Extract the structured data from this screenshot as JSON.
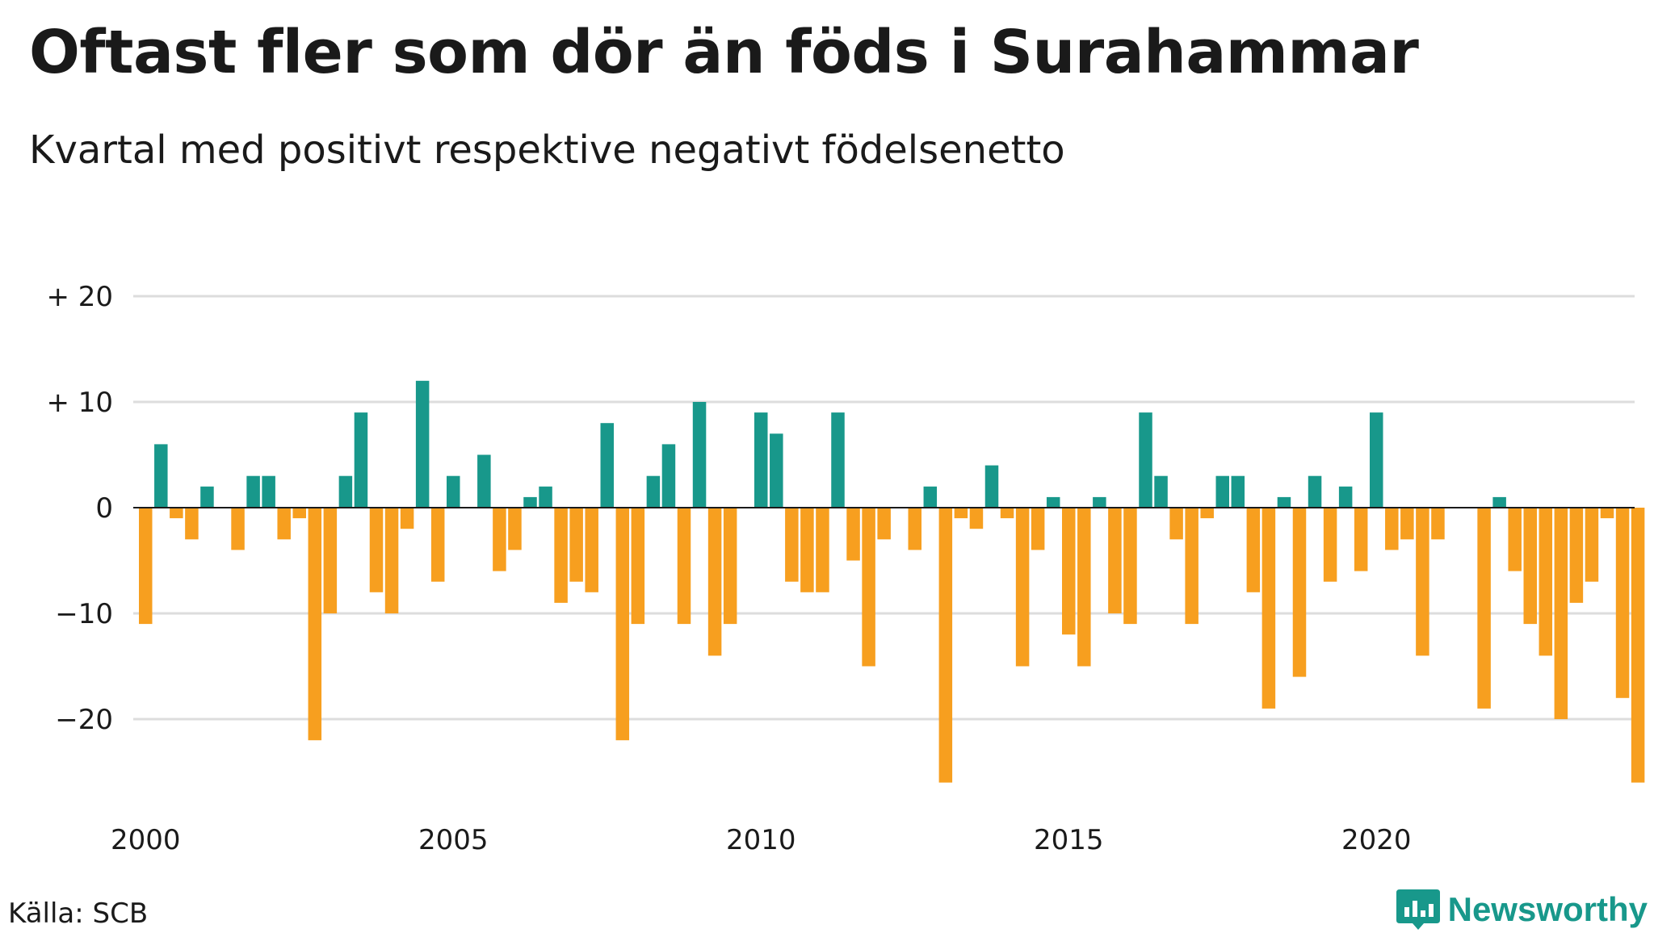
{
  "header": {
    "title": "Oftast fler som dör än föds i Surahammar",
    "subtitle": "Kvartal med positivt respektive negativt födelsenetto"
  },
  "footer": {
    "source": "Källa: SCB",
    "brand": "Newsworthy",
    "brand_icon": "newsworthy-logo-icon",
    "brand_color": "#18988b"
  },
  "colors": {
    "positive": "#18988b",
    "negative": "#f79f1f",
    "grid": "#dddddd",
    "zero_line": "#1a1a1a"
  },
  "chart_data": {
    "type": "bar",
    "x_start": "2000 Q1",
    "frequency": "quarterly",
    "values": [
      -11,
      6,
      -1,
      -3,
      2,
      0,
      -4,
      3,
      3,
      -3,
      -1,
      -22,
      -10,
      3,
      9,
      -8,
      -10,
      -2,
      12,
      -7,
      3,
      0,
      5,
      -6,
      -4,
      1,
      2,
      -9,
      -7,
      -8,
      8,
      -22,
      -11,
      3,
      6,
      -11,
      10,
      -14,
      -11,
      0,
      9,
      7,
      -7,
      -8,
      -8,
      9,
      -5,
      -15,
      -3,
      0,
      -4,
      2,
      -26,
      -1,
      -2,
      4,
      -1,
      -15,
      -4,
      1,
      -12,
      -15,
      1,
      -10,
      -11,
      9,
      3,
      -3,
      -11,
      -1,
      3,
      3,
      -8,
      -19,
      1,
      -16,
      3,
      -7,
      2,
      -6,
      9,
      -4,
      -3,
      -14,
      -3,
      0,
      0,
      -19,
      1,
      -6,
      -11,
      -14,
      -20,
      -9,
      -7,
      -1,
      -18,
      -26
    ],
    "x_ticks": [
      "2000",
      "2005",
      "2010",
      "2015",
      "2020"
    ],
    "y_ticks": [
      {
        "value": 20,
        "label": "+ 20"
      },
      {
        "value": 10,
        "label": "+ 10"
      },
      {
        "value": 0,
        "label": "0"
      },
      {
        "value": -10,
        "label": "−10"
      },
      {
        "value": -20,
        "label": "−20"
      }
    ],
    "ylim": [
      -26,
      20
    ],
    "grid": true,
    "legend": "none",
    "title": "Oftast fler som dör än föds i Surahammar",
    "subtitle": "Kvartal med positivt respektive negativt födelsenetto"
  }
}
